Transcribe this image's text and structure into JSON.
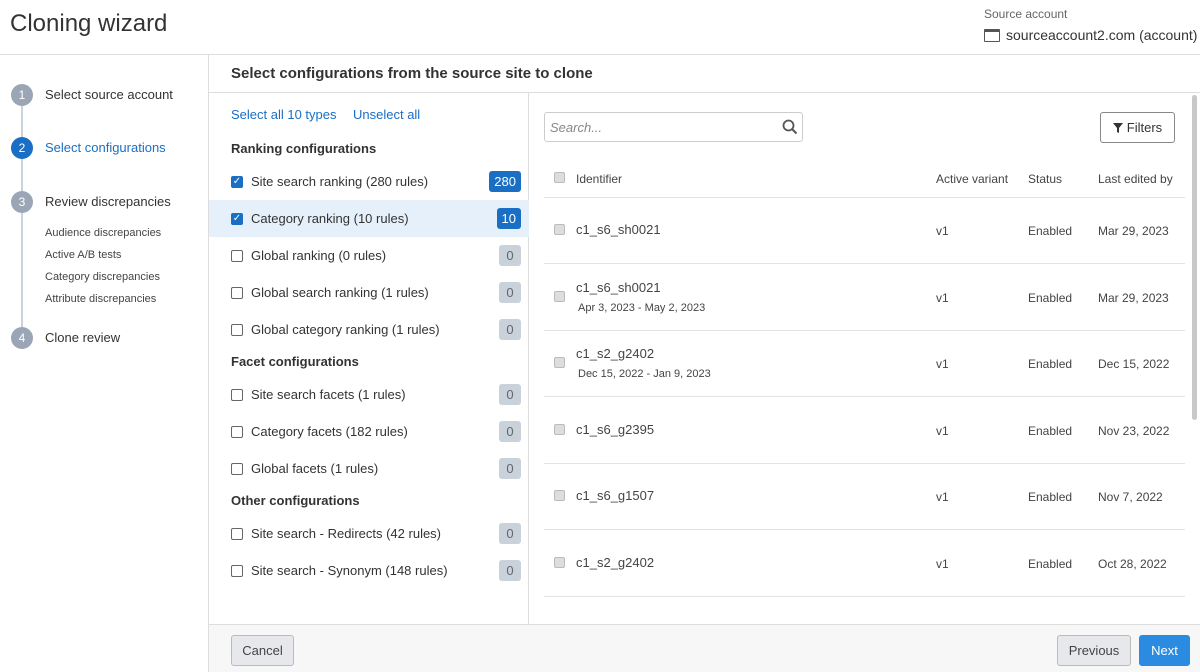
{
  "header": {
    "title": "Cloning wizard",
    "source_label": "Source account",
    "source_value": "sourceaccount2.com (account)"
  },
  "steps": [
    {
      "number": 1,
      "label": "Select source account",
      "active": false,
      "substeps": []
    },
    {
      "number": 2,
      "label": "Select configurations",
      "active": true,
      "substeps": []
    },
    {
      "number": 3,
      "label": "Review discrepancies",
      "active": false,
      "substeps": [
        "Audience discrepancies",
        "Active A/B tests",
        "Category discrepancies",
        "Attribute discrepancies"
      ]
    },
    {
      "number": 4,
      "label": "Clone review",
      "active": false,
      "substeps": []
    }
  ],
  "panel_title": "Select configurations from the source site to clone",
  "select_all": "Select all 10 types",
  "unselect_all": "Unselect all",
  "groups": [
    {
      "title": "Ranking configurations",
      "items": [
        {
          "label": "Site search ranking (280 rules)",
          "count": 280,
          "checked": true,
          "highlighted": false
        },
        {
          "label": "Category ranking (10 rules)",
          "count": 10,
          "checked": true,
          "highlighted": true
        },
        {
          "label": "Global ranking (0 rules)",
          "count": 0,
          "checked": false,
          "highlighted": false
        },
        {
          "label": "Global search ranking (1 rules)",
          "count": 0,
          "checked": false,
          "highlighted": false
        },
        {
          "label": "Global category ranking (1 rules)",
          "count": 0,
          "checked": false,
          "highlighted": false
        }
      ]
    },
    {
      "title": "Facet configurations",
      "items": [
        {
          "label": "Site search facets (1 rules)",
          "count": 0,
          "checked": false,
          "highlighted": false
        },
        {
          "label": "Category facets (182 rules)",
          "count": 0,
          "checked": false,
          "highlighted": false
        },
        {
          "label": "Global facets (1 rules)",
          "count": 0,
          "checked": false,
          "highlighted": false
        }
      ]
    },
    {
      "title": "Other configurations",
      "items": [
        {
          "label": "Site search - Redirects (42 rules)",
          "count": 0,
          "checked": false,
          "highlighted": false
        },
        {
          "label": "Site search - Synonym (148 rules)",
          "count": 0,
          "checked": false,
          "highlighted": false
        }
      ]
    }
  ],
  "search_placeholder": "Search...",
  "filters": "Filters",
  "table": {
    "columns": [
      "Identifier",
      "Active variant",
      "Status",
      "Last edited by"
    ],
    "rows": [
      {
        "identifier": "c1_s6_sh0021",
        "dates": null,
        "variant": "v1",
        "status": "Enabled",
        "edited": "Mar 29, 2023"
      },
      {
        "identifier": "c1_s6_sh0021",
        "dates": "Apr 3, 2023 - May 2, 2023",
        "variant": "v1",
        "status": "Enabled",
        "edited": "Mar 29, 2023"
      },
      {
        "identifier": "c1_s2_g2402",
        "dates": "Dec 15, 2022 - Jan 9, 2023",
        "variant": "v1",
        "status": "Enabled",
        "edited": "Dec 15, 2022"
      },
      {
        "identifier": "c1_s6_g2395",
        "dates": null,
        "variant": "v1",
        "status": "Enabled",
        "edited": "Nov 23, 2022"
      },
      {
        "identifier": "c1_s6_g1507",
        "dates": null,
        "variant": "v1",
        "status": "Enabled",
        "edited": "Nov 7, 2022"
      },
      {
        "identifier": "c1_s2_g2402",
        "dates": null,
        "variant": "v1",
        "status": "Enabled",
        "edited": "Oct 28, 2022"
      }
    ]
  },
  "footer": {
    "cancel": "Cancel",
    "previous": "Previous",
    "next": "Next"
  }
}
